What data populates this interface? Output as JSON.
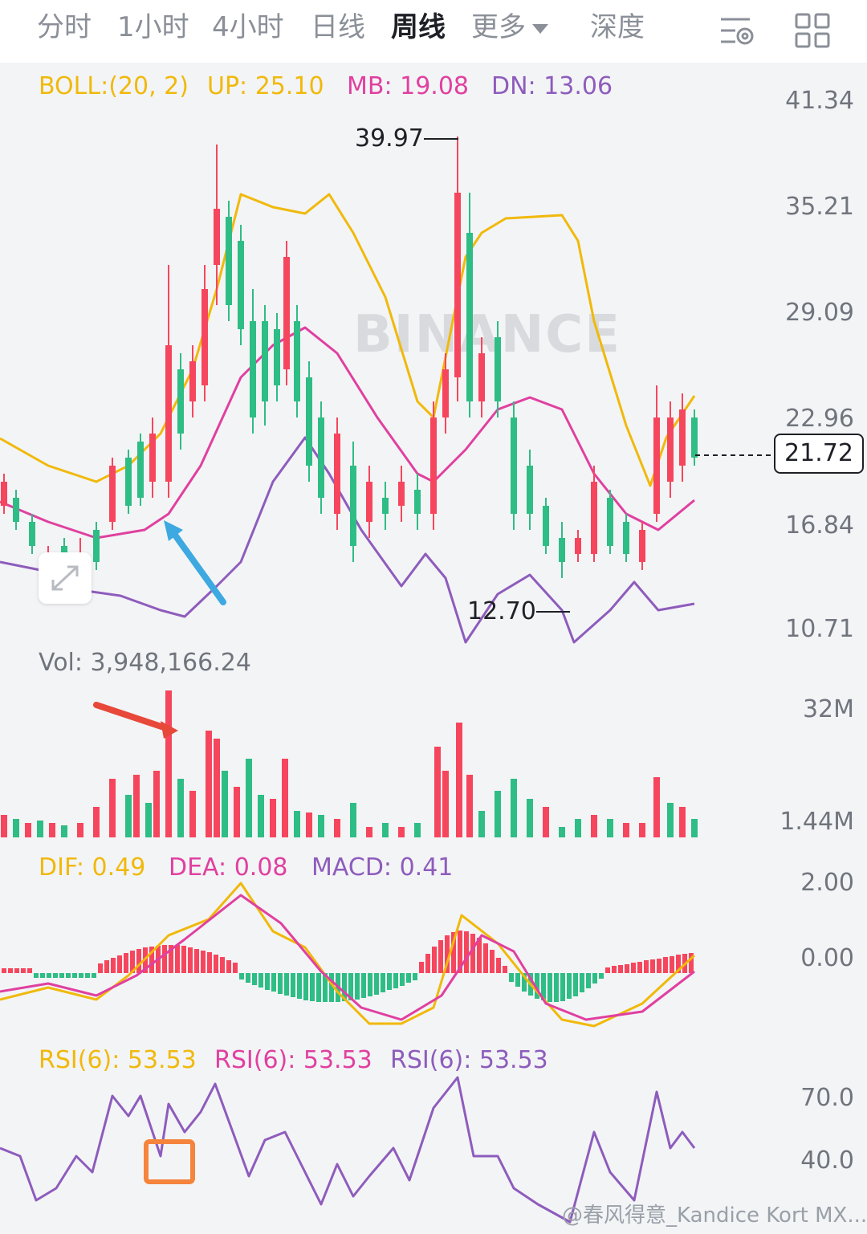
{
  "tabs": [
    {
      "label": "分时",
      "active": false
    },
    {
      "label": "1小时",
      "active": false
    },
    {
      "label": "4小时",
      "active": false
    },
    {
      "label": "日线",
      "active": false
    },
    {
      "label": "周线",
      "active": true
    },
    {
      "label": "更多",
      "active": false
    },
    {
      "label": "深度",
      "active": false
    }
  ],
  "toolbar": {
    "settings_icon": "indicator-settings-icon",
    "layout_icon": "grid-layout-icon"
  },
  "watermark": "BINANCE",
  "boll": {
    "label": "BOLL:(20, 2)",
    "up": "UP: 25.10",
    "mb": "MB: 19.08",
    "dn": "DN: 13.06"
  },
  "price_axis": [
    "41.34",
    "35.21",
    "29.09",
    "22.96",
    "16.84",
    "10.71"
  ],
  "current_price": "21.72",
  "high_label": "39.97",
  "low_label": "12.70",
  "vol": {
    "label": "Vol: 3,948,166.24",
    "axis": [
      "32M",
      "1.44M"
    ]
  },
  "macd": {
    "dif": "DIF: 0.49",
    "dea": "DEA: 0.08",
    "macd": "MACD: 0.41",
    "axis": [
      "2.00",
      "0.00"
    ]
  },
  "rsi": {
    "r1": "RSI(6): 53.53",
    "r2": "RSI(6): 53.53",
    "r3": "RSI(6): 53.53",
    "axis": [
      "70.0",
      "40.0"
    ]
  },
  "footer": "@春风得意_Kandice Kort MX...",
  "colors": {
    "up": "#f6465d",
    "down": "#2ebd85",
    "boll_up": "#f0b90b",
    "boll_mb": "#e040a0",
    "boll_dn": "#8e5cbc",
    "arrow_blue": "#3da9e0",
    "arrow_red": "#e8483a",
    "mark_orange": "#f5843c"
  },
  "chart_data": [
    {
      "type": "candlestick",
      "title": "BOLL:(20, 2)",
      "ylim": [
        10.71,
        41.34
      ],
      "annotations": {
        "high": 39.97,
        "low": 12.7,
        "current": 21.72
      },
      "bands": {
        "up": 25.1,
        "mb": 19.08,
        "dn": 13.06
      }
    },
    {
      "type": "bar",
      "title": "Vol: 3,948,166.24",
      "ylim": [
        1440000,
        32000000
      ]
    },
    {
      "type": "bar",
      "title": "MACD",
      "series": [
        {
          "name": "DIF",
          "last": 0.49
        },
        {
          "name": "DEA",
          "last": 0.08
        },
        {
          "name": "MACD",
          "last": 0.41
        }
      ],
      "ylim": [
        0.0,
        2.0
      ]
    },
    {
      "type": "line",
      "title": "RSI(6)",
      "series": [
        {
          "name": "RSI(6)",
          "last": 53.53
        }
      ],
      "ylim": [
        40.0,
        70.0
      ]
    }
  ]
}
